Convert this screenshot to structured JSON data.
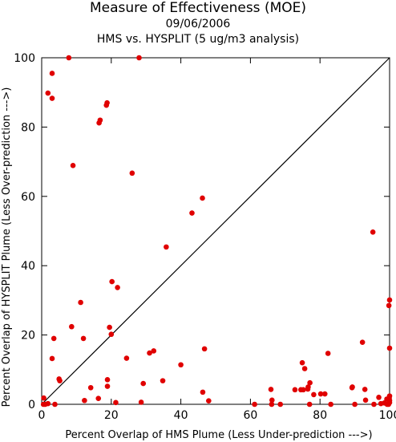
{
  "titles": {
    "main": "Measure of Effectiveness (MOE)",
    "date": "09/06/2006",
    "subtitle": "HMS vs. HYSPLIT  (5 ug/m3 analysis)"
  },
  "chart_data": {
    "type": "scatter",
    "xlabel": "Percent Overlap of HMS Plume (Less Under-prediction --->)",
    "ylabel": "Percent Overlap of HYSPLIT Plume (Less Over-prediction --->)",
    "xlim": [
      0,
      100
    ],
    "ylim": [
      0,
      100
    ],
    "xticks": [
      "0",
      "20",
      "40",
      "60",
      "80",
      "100"
    ],
    "yticks": [
      "0",
      "20",
      "40",
      "60",
      "80",
      "100"
    ],
    "grid": false,
    "reference_line": "y = x",
    "marker_color": "#e00000",
    "line_color": "#000000",
    "points": [
      [
        7.8,
        100
      ],
      [
        28,
        100
      ],
      [
        3,
        95.5
      ],
      [
        1.8,
        89.8
      ],
      [
        3,
        88.3
      ],
      [
        18.8,
        87
      ],
      [
        18.6,
        86.3
      ],
      [
        16.8,
        82
      ],
      [
        16.5,
        81.2
      ],
      [
        9,
        68.9
      ],
      [
        26,
        66.7
      ],
      [
        46.2,
        59.5
      ],
      [
        43.2,
        55.2
      ],
      [
        95.2,
        49.7
      ],
      [
        35.8,
        45.4
      ],
      [
        20.2,
        35.4
      ],
      [
        21.8,
        33.7
      ],
      [
        11.2,
        29.4
      ],
      [
        100,
        30.1
      ],
      [
        99.8,
        28.5
      ],
      [
        8.6,
        22.4
      ],
      [
        19.5,
        22.2
      ],
      [
        20,
        20.2
      ],
      [
        3.5,
        19
      ],
      [
        12,
        19
      ],
      [
        92.2,
        17.9
      ],
      [
        46.8,
        16
      ],
      [
        100,
        16.2
      ],
      [
        32.2,
        15.4
      ],
      [
        31,
        14.8
      ],
      [
        82.3,
        14.7
      ],
      [
        24.4,
        13.3
      ],
      [
        3,
        13.2
      ],
      [
        74.9,
        12
      ],
      [
        40,
        11.4
      ],
      [
        75.6,
        10.3
      ],
      [
        5,
        7.3
      ],
      [
        5.2,
        6.8
      ],
      [
        18.9,
        7.1
      ],
      [
        34.8,
        6.8
      ],
      [
        77.1,
        6.2
      ],
      [
        29.2,
        6
      ],
      [
        18.9,
        5.2
      ],
      [
        14.1,
        4.8
      ],
      [
        76.6,
        5
      ],
      [
        89.3,
        5
      ],
      [
        89.2,
        4.8
      ],
      [
        65.9,
        4.3
      ],
      [
        76.5,
        4.4
      ],
      [
        72.8,
        4.2
      ],
      [
        75.2,
        4.2
      ],
      [
        74.5,
        4.2
      ],
      [
        92.9,
        4.3
      ],
      [
        46.3,
        3.5
      ],
      [
        78.2,
        2.8
      ],
      [
        80.2,
        3
      ],
      [
        81.4,
        3
      ],
      [
        100,
        2.4
      ],
      [
        96.9,
        2
      ],
      [
        99.9,
        1.8
      ],
      [
        0.6,
        1.8
      ],
      [
        12.3,
        1.1
      ],
      [
        16.3,
        1.7
      ],
      [
        48,
        1
      ],
      [
        66.2,
        1.2
      ],
      [
        93.1,
        1.2
      ],
      [
        99.2,
        1.5
      ],
      [
        100,
        1.1
      ],
      [
        98.5,
        0.4
      ],
      [
        97.5,
        0.2
      ],
      [
        28.6,
        0.6
      ],
      [
        21.3,
        0.5
      ],
      [
        1,
        0
      ],
      [
        0.5,
        0
      ],
      [
        1.8,
        0.2
      ],
      [
        3.8,
        0
      ],
      [
        61.2,
        0
      ],
      [
        66.1,
        0
      ],
      [
        68.6,
        0
      ],
      [
        77,
        0
      ],
      [
        83.1,
        0
      ],
      [
        90,
        0
      ],
      [
        95.5,
        0
      ],
      [
        99.3,
        0
      ],
      [
        100,
        0.5
      ],
      [
        99.7,
        0
      ]
    ]
  }
}
